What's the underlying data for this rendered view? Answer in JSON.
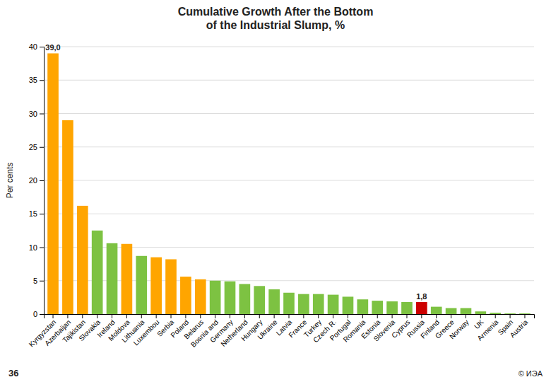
{
  "chart_data": {
    "type": "bar",
    "title": "Cumulative Growth After the Bottom\nof the Industrial Slump, %",
    "ylabel": "Per cents",
    "categories": [
      "Kyrgyzstan",
      "Azerbaijan",
      "Tajikistan",
      "Slovakia",
      "Ireland",
      "Moldova",
      "Lithuania",
      "Luxembou",
      "Serbia",
      "Poland",
      "Belarus",
      "Bosnia and",
      "Germany",
      "Netherland",
      "Hungary",
      "Ukraine",
      "Latvia",
      "France",
      "Turkey",
      "Czech R.",
      "Portugal",
      "Romania",
      "Estonia",
      "Slovenia",
      "Cyprus",
      "Russia",
      "Finland",
      "Greece",
      "Norway",
      "UK",
      "Armenia",
      "Spain",
      "Austria"
    ],
    "values": [
      39.0,
      29.0,
      16.2,
      12.5,
      10.6,
      10.5,
      8.7,
      8.5,
      8.2,
      5.6,
      5.2,
      5.0,
      4.9,
      4.5,
      4.2,
      3.7,
      3.2,
      3.0,
      3.0,
      2.9,
      2.6,
      2.2,
      2.0,
      1.9,
      1.8,
      1.8,
      1.1,
      0.9,
      0.9,
      0.4,
      0.2,
      0.1,
      0.1
    ],
    "value_labels": [
      "39,0",
      null,
      null,
      null,
      null,
      null,
      null,
      null,
      null,
      null,
      null,
      null,
      null,
      null,
      null,
      null,
      null,
      null,
      null,
      null,
      null,
      null,
      null,
      null,
      null,
      "1,8",
      null,
      null,
      null,
      null,
      null,
      null,
      null
    ],
    "colors": [
      "#FFA500",
      "#FFA500",
      "#FFA500",
      "#7DC242",
      "#7DC242",
      "#FFA500",
      "#7DC242",
      "#FFA500",
      "#FFA500",
      "#FFA500",
      "#FFA500",
      "#7DC242",
      "#7DC242",
      "#7DC242",
      "#7DC242",
      "#7DC242",
      "#7DC242",
      "#7DC242",
      "#7DC242",
      "#7DC242",
      "#7DC242",
      "#7DC242",
      "#7DC242",
      "#7DC242",
      "#7DC242",
      "#CC0000",
      "#7DC242",
      "#7DC242",
      "#7DC242",
      "#7DC242",
      "#7DC242",
      "#7DC242",
      "#7DC242"
    ],
    "ylim": [
      0,
      40
    ],
    "yticks": [
      0,
      5,
      10,
      15,
      20,
      25,
      30,
      35,
      40
    ],
    "grid": true,
    "annotations": [
      "36",
      "© ИЭА"
    ]
  }
}
